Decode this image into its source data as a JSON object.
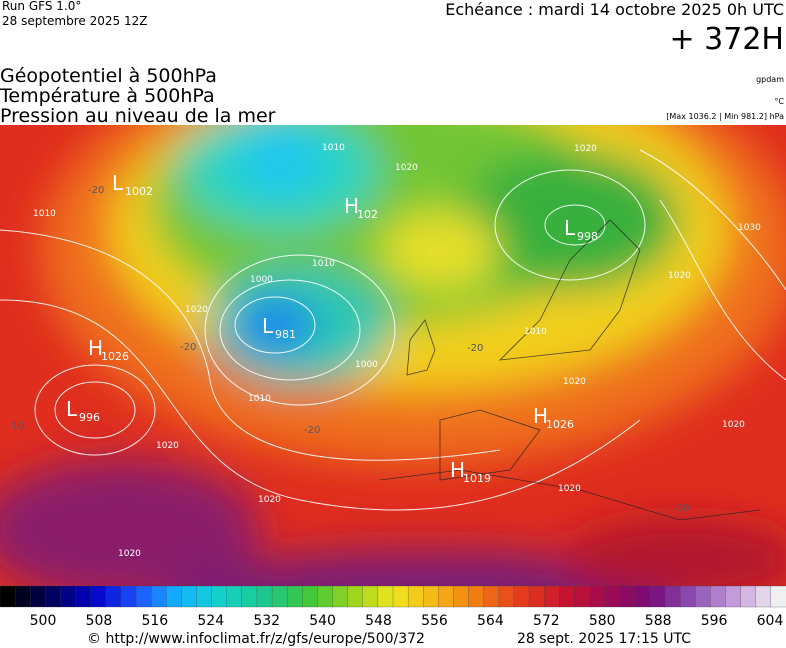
{
  "header": {
    "run": "Run GFS 1.0°",
    "run_date": "28 septembre 2025 12Z",
    "valid": "Echéance : mardi 14 octobre 2025 0h UTC",
    "lead": "+ 372H"
  },
  "titles": [
    "Géopotentiel à 500hPa",
    "Température à 500hPa",
    "Pression au niveau de la mer"
  ],
  "units": {
    "geopotential": "gpdam",
    "temperature": "°C",
    "pressure": "[Max 1036.2 | Min 981.2] hPa"
  },
  "pressure_centers": [
    {
      "letter": "L",
      "value": 1002
    },
    {
      "letter": "H",
      "value": 1026
    },
    {
      "letter": "L",
      "value": 996
    },
    {
      "letter": "L",
      "value": 981
    },
    {
      "letter": "H",
      "value": 102
    },
    {
      "letter": "L",
      "value": 998
    },
    {
      "letter": "H",
      "value": 1026
    },
    {
      "letter": "H",
      "value": 1019
    }
  ],
  "isobar_labels": [
    1010,
    1020,
    1020,
    1030,
    1020,
    1010,
    1010,
    1000,
    1000,
    1010,
    1020,
    1010,
    1020,
    1020,
    1020,
    1020,
    1020,
    1020
  ],
  "temperature_labels": [
    -20,
    -20,
    -20,
    -20,
    -10,
    -10
  ],
  "colorbar": {
    "labels": [
      500,
      508,
      516,
      524,
      532,
      540,
      548,
      556,
      564,
      572,
      580,
      588,
      596,
      604
    ]
  },
  "footer": {
    "source": "© http://www.infoclimat.fr/z/gfs/europe/500/372",
    "generated": "28 sept. 2025 17:15 UTC"
  }
}
